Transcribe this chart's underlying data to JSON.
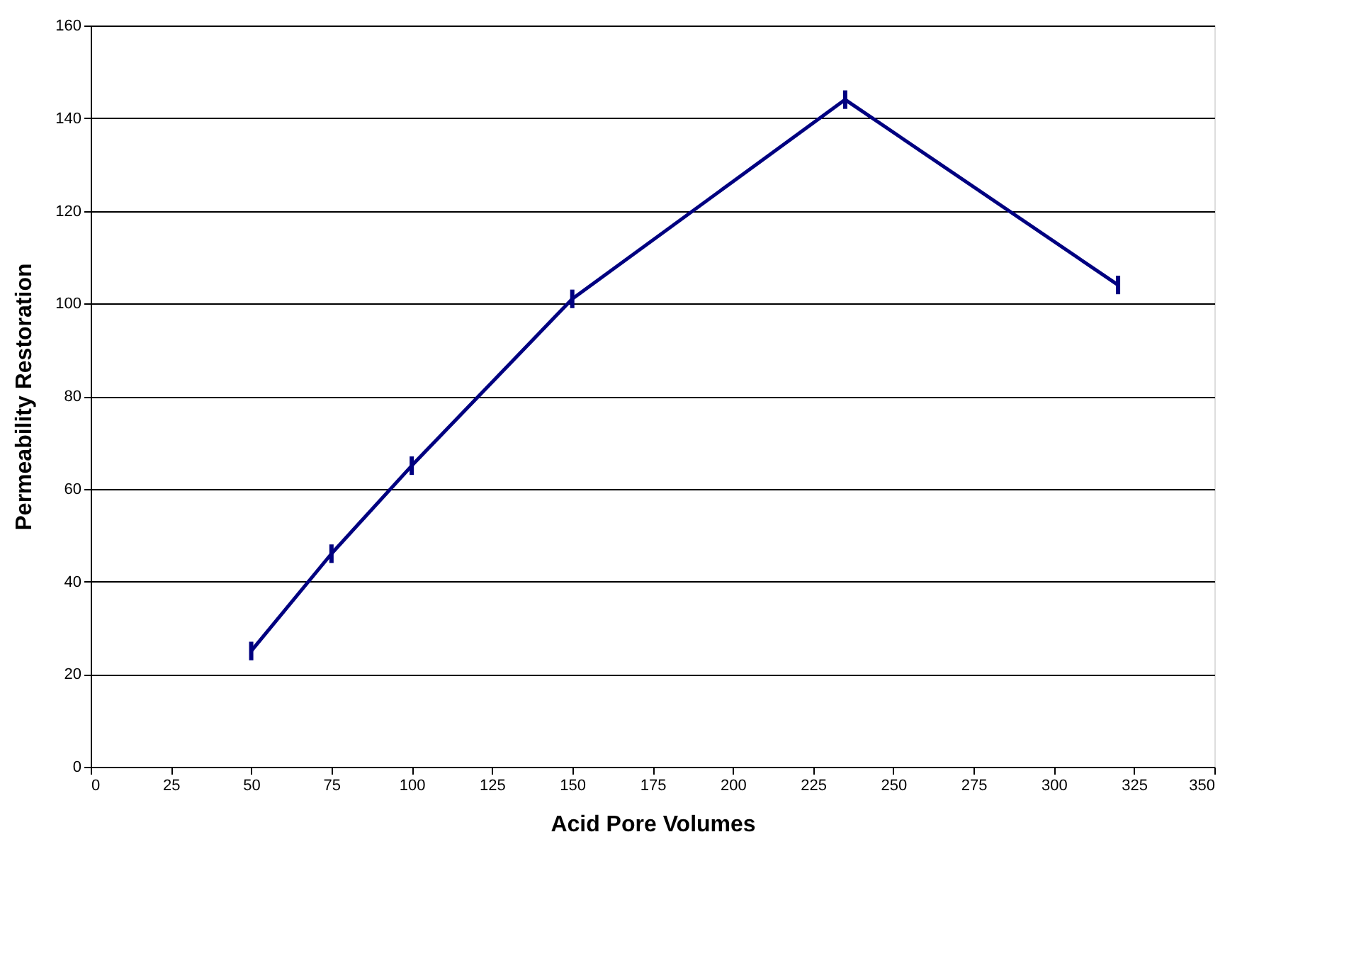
{
  "chart_data": {
    "type": "line",
    "xlabel": "Acid Pore Volumes",
    "ylabel": "Permeability Restoration",
    "x": [
      50,
      75,
      100,
      150,
      235,
      320
    ],
    "series": [
      {
        "color": "#000080",
        "values": [
          25,
          46,
          65,
          101,
          144,
          104
        ],
        "errors": [
          2,
          2,
          2,
          2,
          2,
          2
        ]
      }
    ],
    "xlim": [
      0,
      350
    ],
    "xticks": [
      0,
      25,
      50,
      75,
      100,
      125,
      150,
      175,
      200,
      225,
      250,
      275,
      300,
      325,
      350
    ],
    "ylim": [
      0,
      160
    ],
    "yticks": [
      0,
      20,
      40,
      60,
      80,
      100,
      120,
      140,
      160
    ],
    "grid": "y",
    "marker": "none",
    "line_style": "solid"
  }
}
